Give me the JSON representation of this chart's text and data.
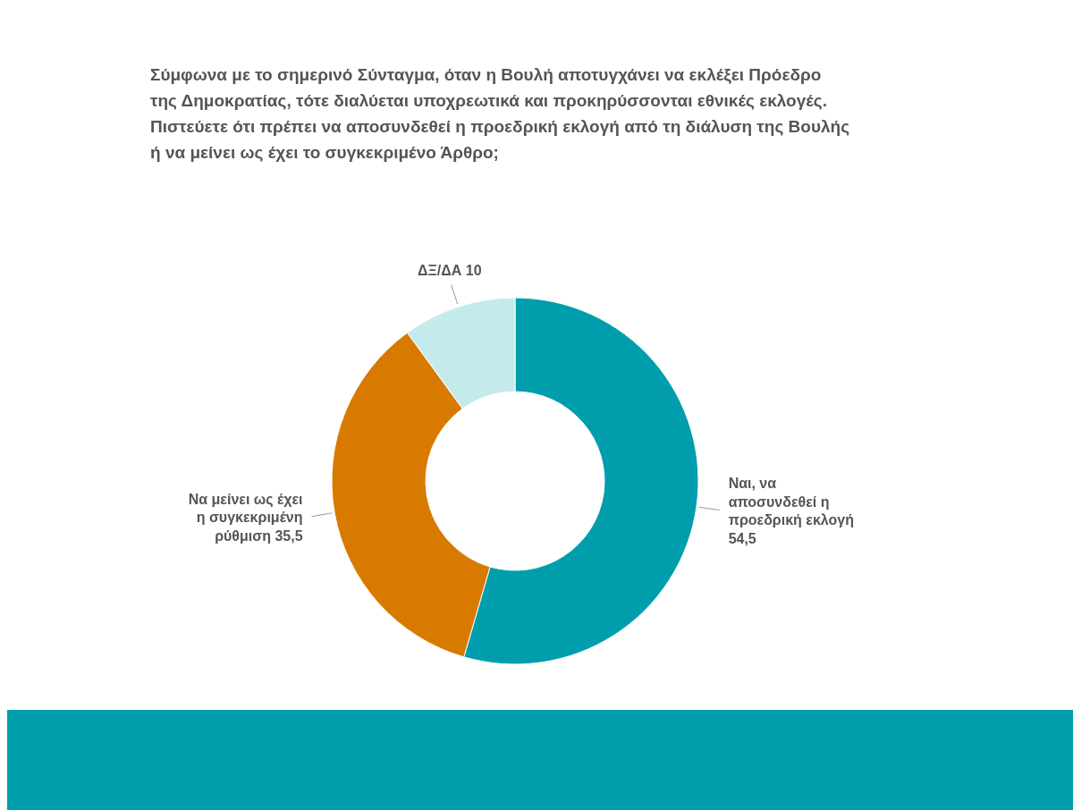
{
  "chart_data": {
    "type": "donut",
    "title": "Σύμφωνα με το σημερινό Σύνταγμα, όταν η Βουλή αποτυγχάνει να εκλέξει Πρόεδρο\nτης Δημοκρατίας, τότε διαλύεται υποχρεωτικά και προκηρύσσονται εθνικές εκλογές.\nΠιστεύετε ότι πρέπει να αποσυνδεθεί η προεδρική εκλογή από τη διάλυση της Βουλής\nή να μείνει ως έχει το συγκεκριμένο Άρθρο;",
    "categories": [
      "Ναι, να αποσυνδεθεί η προεδρική εκλογή",
      "Να μείνει ως έχει η συγκεκριμένη ρύθμιση",
      "ΔΞ/ΔΑ"
    ],
    "values": [
      54.5,
      35.5,
      10
    ],
    "value_labels": [
      "54,5",
      "35,5",
      "10"
    ],
    "colors": [
      "#009eac",
      "#d97a00",
      "#c5eaec"
    ]
  }
}
